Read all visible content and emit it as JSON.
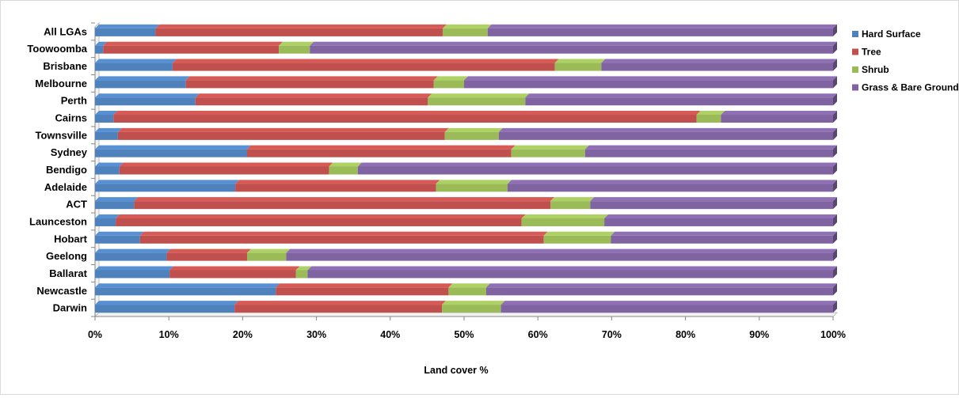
{
  "chart_data": {
    "type": "bar",
    "orientation": "horizontal",
    "stacked": "percent",
    "categories": [
      "All LGAs",
      "Toowoomba",
      "Brisbane",
      "Melbourne",
      "Perth",
      "Cairns",
      "Townsville",
      "Sydney",
      "Bendigo",
      "Adelaide",
      "ACT",
      "Launceston",
      "Hobart",
      "Geelong",
      "Ballarat",
      "Newcastle",
      "Darwin"
    ],
    "series": [
      {
        "name": "Hard Surface",
        "color": "#4f81bd",
        "values": [
          8.2,
          1.1,
          10.5,
          12.3,
          13.6,
          2.5,
          3.1,
          20.6,
          3.3,
          19.0,
          5.3,
          2.8,
          6.1,
          9.7,
          10.1,
          24.5,
          18.9
        ]
      },
      {
        "name": "Tree",
        "color": "#c0504d",
        "values": [
          38.9,
          23.8,
          51.8,
          33.6,
          31.5,
          79.0,
          44.3,
          35.8,
          28.4,
          27.2,
          56.4,
          55.0,
          54.7,
          10.9,
          17.1,
          23.4,
          28.1
        ]
      },
      {
        "name": "Shrub",
        "color": "#9bbb59",
        "values": [
          6.1,
          4.2,
          6.3,
          4.1,
          13.2,
          3.3,
          7.3,
          10.0,
          3.9,
          9.7,
          5.4,
          11.2,
          9.1,
          5.3,
          1.6,
          5.1,
          8.0
        ]
      },
      {
        "name": "Grass & Bare Ground",
        "color": "#8064a2",
        "values": [
          46.8,
          70.9,
          31.4,
          50.0,
          41.7,
          15.2,
          45.3,
          33.6,
          64.4,
          44.1,
          32.9,
          31.0,
          30.1,
          74.1,
          71.2,
          47.0,
          45.0
        ]
      }
    ],
    "xticks": [
      "0%",
      "10%",
      "20%",
      "30%",
      "40%",
      "50%",
      "60%",
      "70%",
      "80%",
      "90%",
      "100%"
    ],
    "xlim": [
      0,
      100
    ],
    "xlabel": "Land cover %",
    "ylabel": "",
    "title": "",
    "grid": false,
    "legend_position": "right"
  }
}
